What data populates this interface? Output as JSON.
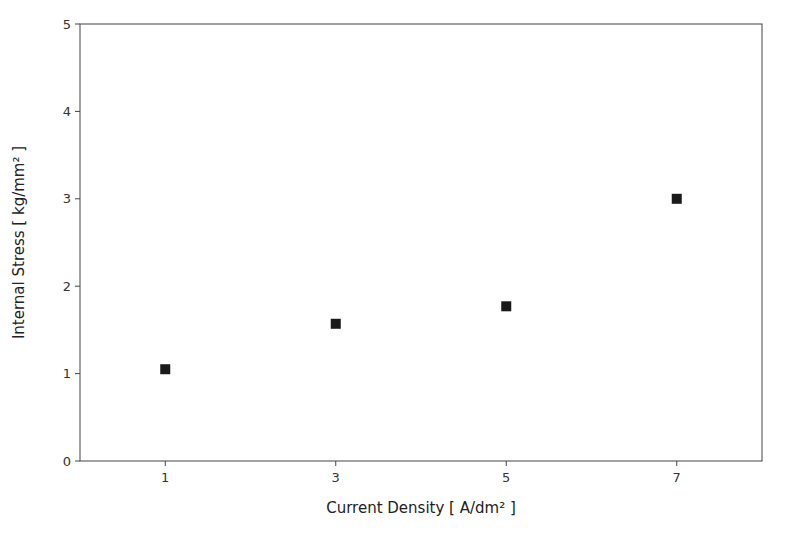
{
  "chart_data": {
    "type": "scatter",
    "x": [
      1,
      3,
      5,
      7
    ],
    "values": [
      1.05,
      1.57,
      1.77,
      3.0
    ],
    "xlabel": "Current Density [ A/dm² ]",
    "ylabel": "Internal Stress [ kg/mm² ]",
    "xlim": [
      0,
      8
    ],
    "ylim": [
      0,
      5
    ],
    "xticks": [
      1,
      3,
      5,
      7
    ],
    "yticks": [
      0,
      1,
      2,
      3,
      4,
      5
    ],
    "marker": "square",
    "color": "#1a1a1a",
    "grid": false
  }
}
